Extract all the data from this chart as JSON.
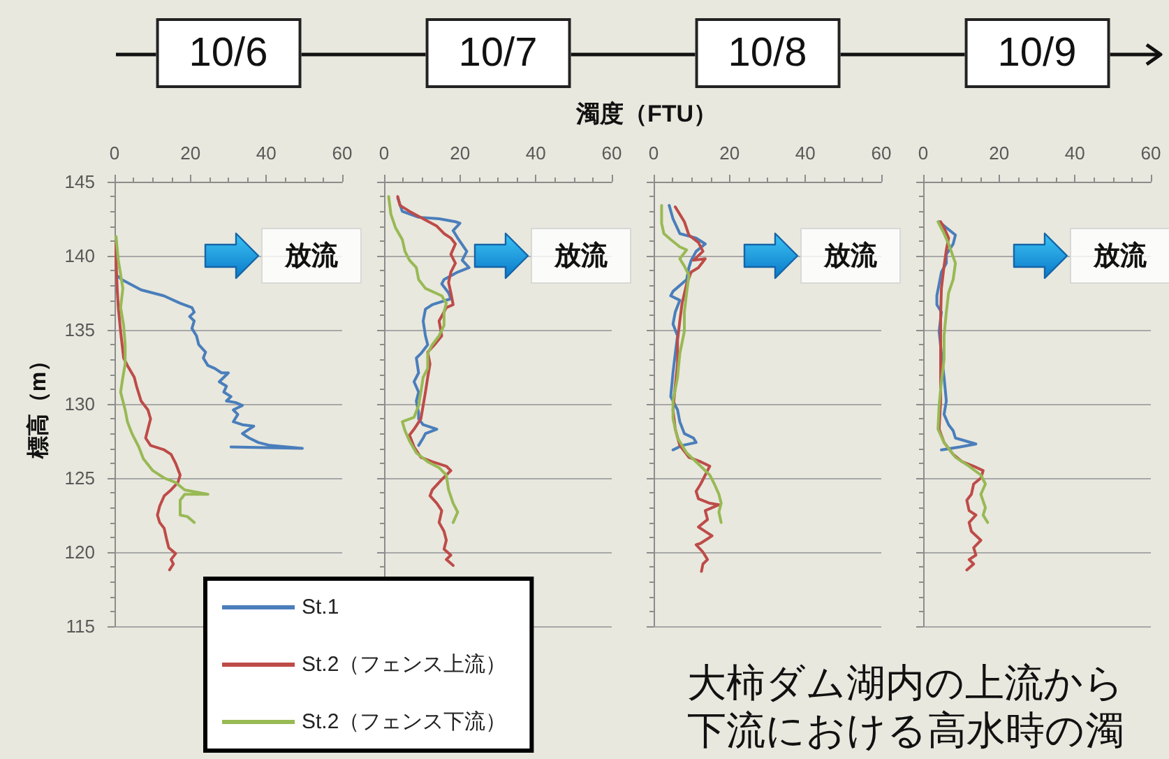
{
  "chart_data": [
    {
      "type": "line",
      "title": "10/6",
      "ylabel": "標高（m）",
      "xlim": [
        0,
        60
      ],
      "xticks": [
        0,
        20,
        40,
        60
      ],
      "ylim": [
        115,
        145
      ],
      "yticks": [
        115,
        120,
        125,
        130,
        135,
        140,
        145
      ],
      "grid": "y",
      "marker": "none",
      "legend": "bottom right",
      "series": [
        {
          "name": "St.1",
          "color": "#4a7ebb",
          "x": [
            1.0,
            1.9,
            7,
            13,
            17.3,
            20.4,
            21,
            19.8,
            21,
            20.4,
            21.6,
            22.2,
            24,
            23.4,
            24.6,
            26.4,
            28.2,
            30,
            27.6,
            29.5,
            28.8,
            30.7,
            29.5,
            31.9,
            33.7,
            31.3,
            32.5,
            31.3,
            33.7,
            36.7,
            33.7,
            35.5,
            37.9,
            41,
            49.5,
            30.7
          ],
          "values": [
            138.6,
            138.4,
            137.7,
            137.3,
            136.8,
            136.5,
            136.2,
            135.9,
            135.6,
            135.1,
            134.6,
            134,
            133.5,
            133.1,
            132.6,
            132.4,
            132.1,
            132.1,
            131.5,
            131.2,
            130.8,
            130.5,
            130.2,
            130.1,
            129.9,
            129.6,
            129.3,
            128.8,
            128.6,
            128.5,
            128,
            127.7,
            127.4,
            127.2,
            127,
            127.1
          ]
        },
        {
          "name": "St.2（フェンス上流）",
          "color": "#be4b48",
          "x": [
            0.4,
            0.4,
            0.7,
            1,
            1.6,
            2.4,
            3.4,
            5.2,
            5.8,
            7,
            8.8,
            9.5,
            8.8,
            8.2,
            9.5,
            13.1,
            14.9,
            16.1,
            17.3,
            16.7,
            14.9,
            13.1,
            11.9,
            11.3,
            11.9,
            13.1,
            13.7,
            14.3,
            16.1,
            14.9,
            15.5,
            14.5
          ],
          "values": [
            140.9,
            139.7,
            137.8,
            136.5,
            134.9,
            133.1,
            132.6,
            131.8,
            131.2,
            130.2,
            129.6,
            129,
            128.3,
            127.7,
            127.2,
            126.9,
            126.6,
            126,
            125.2,
            124.7,
            124.2,
            123.8,
            123.1,
            122.5,
            122,
            121.6,
            120.9,
            120.3,
            119.9,
            119.5,
            119.2,
            118.8
          ]
        },
        {
          "name": "St.2（フェンス下流）",
          "color": "#98b954",
          "x": [
            0.4,
            1,
            2.2,
            1.6,
            2.4,
            2.8,
            2.8,
            2.2,
            1.6,
            2.8,
            3.4,
            4.6,
            6.4,
            7.6,
            10.1,
            13.1,
            16.1,
            18.5,
            24.6,
            18.5,
            17.3,
            17.3,
            19.2,
            21
          ],
          "values": [
            141.3,
            139.7,
            137.8,
            136.5,
            135.3,
            134,
            132.7,
            131.8,
            130.8,
            129.6,
            128.8,
            128,
            127.1,
            126.3,
            125.5,
            125,
            124.7,
            124.2,
            123.9,
            123.9,
            123.5,
            122.5,
            122.4,
            122
          ]
        }
      ],
      "annotations": [
        "放流"
      ]
    },
    {
      "type": "line",
      "title": "10/7",
      "xlabel": "濁度（FTU）",
      "xlim": [
        0,
        60
      ],
      "xticks": [
        0,
        20,
        40,
        60
      ],
      "ylim": [
        115,
        145
      ],
      "yticks": [
        115,
        120,
        125,
        130,
        135,
        140,
        145
      ],
      "grid": "y",
      "marker": "none",
      "tick_labels": "x",
      "series": [
        {
          "color": "#4a7ebb",
          "x": [
            3.6,
            4.8,
            9.1,
            14.5,
            18.8,
            20,
            18.2,
            19.4,
            21.8,
            20.6,
            22.4,
            19.4,
            15.8,
            15.2,
            17,
            17.6,
            12.7,
            10.9,
            10.3,
            10.9,
            11.5,
            9.7,
            8.5,
            9.1,
            7.9,
            9.1,
            8.5,
            9.1,
            9.1,
            10.3,
            13.9,
            10.9,
            10.3,
            9.1
          ],
          "values": [
            143.9,
            143,
            142.6,
            142.5,
            142.3,
            142.2,
            141.7,
            141.2,
            140.3,
            139.7,
            139.2,
            138.9,
            138.4,
            138.1,
            137.5,
            137.1,
            136.7,
            136.4,
            135.6,
            134.6,
            134,
            133.4,
            133.1,
            132.1,
            131.5,
            130.8,
            130.2,
            129.4,
            129,
            128.6,
            128.3,
            128,
            127.7,
            127.2
          ]
        },
        {
          "color": "#be4b48",
          "x": [
            3.6,
            4.2,
            6.7,
            10.3,
            13.9,
            15.8,
            17.6,
            18.8,
            17.6,
            18.8,
            17.6,
            17,
            17.6,
            18.2,
            16.4,
            14.5,
            15.2,
            13.3,
            11.5,
            12.1,
            11.5,
            10.9,
            10.3,
            9.7,
            7.9,
            6.7,
            7.9,
            9.7,
            12.7,
            16.4,
            17.6,
            16.4,
            15.2,
            12.7,
            12.1,
            13.9,
            15.2,
            14.5,
            15.8,
            16.4,
            15.8,
            17.6,
            16.4,
            18.2
          ],
          "values": [
            144,
            143.4,
            143,
            142.5,
            142,
            141.5,
            141.2,
            140.8,
            140.1,
            139.5,
            138.9,
            138.2,
            137.5,
            136.7,
            136.5,
            135.6,
            134.6,
            134,
            133.5,
            132.7,
            131.8,
            130.8,
            129.9,
            129,
            128.3,
            127.9,
            127.1,
            126.4,
            126.1,
            125.8,
            125.5,
            125.2,
            124.9,
            124.2,
            123.8,
            123.3,
            122.8,
            122,
            121.4,
            120.8,
            120.2,
            119.8,
            119.5,
            119.1
          ]
        },
        {
          "color": "#98b954",
          "x": [
            1.2,
            1.8,
            3,
            4.8,
            5.5,
            6.7,
            8.5,
            9.1,
            10.9,
            15.2,
            16.4,
            15.8,
            15.8,
            14.5,
            12.7,
            11.5,
            11.5,
            10.3,
            9.7,
            9.1,
            7.9,
            4.8,
            5.5,
            6.7,
            8.5,
            11.5,
            14.5,
            16.4,
            17,
            18.2,
            19.4,
            18.2
          ],
          "values": [
            144,
            142.8,
            141.9,
            141.1,
            140.3,
            139.7,
            139.2,
            138.4,
            137.8,
            137.3,
            136.8,
            136.2,
            135.3,
            134.6,
            134,
            133.4,
            132.4,
            131.8,
            130.8,
            129.9,
            129.1,
            128.8,
            128.2,
            127.5,
            126.7,
            126.1,
            125.7,
            125.2,
            124.2,
            123.3,
            122.7,
            122
          ]
        }
      ],
      "annotations": [
        "放流"
      ]
    },
    {
      "type": "line",
      "title": "10/8",
      "xlim": [
        0,
        60
      ],
      "xticks": [
        0,
        20,
        40,
        60
      ],
      "ylim": [
        115,
        145
      ],
      "yticks": [
        115,
        120,
        125,
        130,
        135,
        140,
        145
      ],
      "grid": "y",
      "marker": "none",
      "tick_labels": "x",
      "series": [
        {
          "color": "#4a7ebb",
          "x": [
            4.1,
            5.1,
            6.9,
            11.2,
            13.6,
            11.2,
            9.9,
            9.3,
            8.7,
            5.1,
            4.5,
            6.9,
            5.7,
            5.1,
            6.3,
            5.7,
            5.1,
            4.5,
            6.3,
            6.9,
            8.1,
            10.5,
            11.2,
            7.5,
            5.1
          ],
          "values": [
            143.4,
            142.5,
            141.5,
            141.2,
            140.8,
            140.3,
            139.7,
            139.2,
            138.4,
            137.6,
            137.3,
            137,
            136.2,
            135.4,
            134.6,
            133.4,
            132.1,
            130.5,
            129.6,
            128.8,
            128,
            127.7,
            127.4,
            127.2,
            126.9
          ]
        },
        {
          "color": "#be4b48",
          "x": [
            5.7,
            6.9,
            8.1,
            9.3,
            11.8,
            13,
            10.5,
            13.6,
            11.8,
            9.9,
            8.7,
            7.5,
            6.9,
            6.3,
            6.3,
            5.7,
            5.1,
            5.7,
            6.9,
            9.3,
            12.4,
            14.8,
            13.6,
            12.4,
            11.2,
            11.8,
            14.8,
            17.2,
            13.6,
            14.2,
            11.8,
            13.6,
            15.4,
            12.4,
            11.2,
            13,
            14.2,
            13,
            12.6
          ],
          "values": [
            143.3,
            142.8,
            142.3,
            141.4,
            140.9,
            140.3,
            139.7,
            139.8,
            139.2,
            138.9,
            138.1,
            136.8,
            135.6,
            134.3,
            132.7,
            131.2,
            129.6,
            128.3,
            127.2,
            126.4,
            126.1,
            125.8,
            125.2,
            124.6,
            124.1,
            123.6,
            123.3,
            123.2,
            122.8,
            122.2,
            121.7,
            121.4,
            121.1,
            120.6,
            120.5,
            120,
            119.5,
            119.2,
            118.7
          ]
        },
        {
          "color": "#98b954",
          "x": [
            2.1,
            2.1,
            2.7,
            4.5,
            6.9,
            8.7,
            6.9,
            8.1,
            9.3,
            8.7,
            8.1,
            8.1,
            6.9,
            6.3,
            5.1,
            5.1,
            6.3,
            8.7,
            12.4,
            14.8,
            16,
            17.2,
            17.8,
            17.2,
            17.8
          ],
          "values": [
            143.4,
            142.2,
            141.5,
            141.1,
            140.6,
            140.4,
            139.8,
            139.3,
            138.7,
            137.5,
            136.2,
            134.9,
            133.4,
            131.8,
            130.2,
            129,
            127.7,
            126.7,
            125.8,
            125.2,
            124.6,
            123.9,
            123.3,
            122.7,
            122
          ]
        }
      ],
      "annotations": [
        "放流"
      ]
    },
    {
      "type": "line",
      "title": "10/9",
      "xlim": [
        0,
        60
      ],
      "xticks": [
        0,
        20,
        40,
        60
      ],
      "ylim": [
        115,
        145
      ],
      "yticks": [
        115,
        120,
        125,
        130,
        135,
        140,
        145
      ],
      "grid": "y",
      "marker": "none",
      "tick_labels": "x",
      "series": [
        {
          "color": "#4a7ebb",
          "x": [
            4.2,
            6.1,
            8.5,
            7.9,
            6.1,
            6.1,
            4.8,
            4.2,
            3.6,
            3.6,
            4.8,
            4.2,
            4.8,
            5.5,
            6.1,
            5.5,
            6.7,
            7.9,
            8.5,
            13.9,
            9.7,
            4.8
          ],
          "values": [
            142.3,
            141.9,
            141.4,
            140.8,
            140.1,
            139.5,
            138.9,
            138.1,
            137.3,
            136.7,
            136.2,
            134.9,
            133.4,
            131.8,
            130.2,
            129.3,
            128.6,
            128.2,
            127.7,
            127.3,
            127.1,
            126.9
          ]
        },
        {
          "color": "#be4b48",
          "x": [
            4.6,
            5.5,
            6.7,
            6.1,
            5.5,
            4.8,
            4.6,
            4.6,
            4.6,
            4.6,
            4.2,
            5.5,
            7.9,
            10.3,
            13.3,
            15.8,
            15.2,
            13.3,
            12.7,
            11.5,
            12.1,
            13.9,
            12.1,
            12.7,
            15.2,
            13.3,
            13.9,
            12.1,
            13.3,
            11.5
          ],
          "values": [
            142.3,
            141.9,
            141.2,
            140.4,
            139.3,
            137.8,
            135.9,
            134,
            132.1,
            130.2,
            128.3,
            127.4,
            126.6,
            126.1,
            125.8,
            125.5,
            125,
            124.6,
            123.9,
            123.5,
            122.8,
            122.5,
            122,
            121.4,
            120.8,
            120.3,
            119.8,
            119.5,
            119.2,
            118.8
          ]
        },
        {
          "color": "#98b954",
          "x": [
            3.9,
            5.5,
            6.7,
            8.5,
            7.9,
            6.7,
            6.1,
            5.5,
            5.5,
            4.8,
            4.2,
            3.9,
            5.5,
            8.5,
            12.1,
            15.2,
            16.4,
            15.2,
            16.4,
            15.8,
            17
          ],
          "values": [
            142.3,
            141.5,
            140.8,
            139.5,
            138.4,
            137.5,
            136.2,
            134.6,
            133,
            131.5,
            129.9,
            128.3,
            127.4,
            126.4,
            125.8,
            125.2,
            124.6,
            123.9,
            123,
            122.5,
            122
          ]
        }
      ],
      "annotations": [
        "放流",
        "大柿ダム湖内の上流から",
        "下流における高水時の濁"
      ]
    }
  ]
}
